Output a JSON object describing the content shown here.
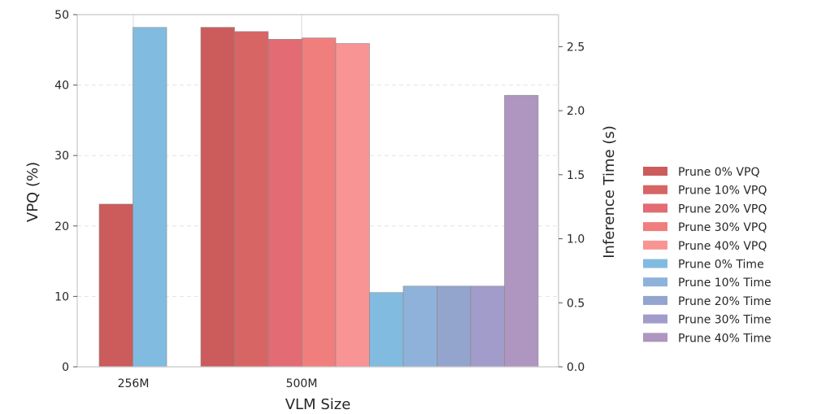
{
  "chart_data": {
    "type": "bar",
    "categories": [
      "256M",
      "500M"
    ],
    "xlabel": "VLM Size",
    "ylabel_left": "VPQ (%)",
    "ylabel_right": "Inference Time (s)",
    "ylim_left": [
      0,
      50
    ],
    "ylim_right": [
      0,
      2.75
    ],
    "left_ticks": [
      0,
      10,
      20,
      30,
      40,
      50
    ],
    "right_ticks": [
      "0.0",
      "0.5",
      "1.0",
      "1.5",
      "2.0",
      "2.5"
    ],
    "grid": "horizontal dashed",
    "legend_position": "right",
    "vpq_series": [
      {
        "name": "Prune 0% VPQ",
        "color": "#cb5c5b",
        "values": [
          23.1,
          48.2
        ]
      },
      {
        "name": "Prune 10% VPQ",
        "color": "#d76564",
        "values": [
          null,
          47.6
        ]
      },
      {
        "name": "Prune 20% VPQ",
        "color": "#e26b74",
        "values": [
          null,
          46.5
        ]
      },
      {
        "name": "Prune 30% VPQ",
        "color": "#f07e7d",
        "values": [
          null,
          46.7
        ]
      },
      {
        "name": "Prune 40% VPQ",
        "color": "#f89493",
        "values": [
          null,
          45.9
        ]
      }
    ],
    "time_series": [
      {
        "name": "Prune 0% Time",
        "color": "#82bbe0",
        "values": [
          2.65,
          0.58
        ]
      },
      {
        "name": "Prune 10% Time",
        "color": "#8fb2da",
        "values": [
          null,
          0.63
        ]
      },
      {
        "name": "Prune 20% Time",
        "color": "#93a4cd",
        "values": [
          null,
          0.63
        ]
      },
      {
        "name": "Prune 30% Time",
        "color": "#a29ccb",
        "values": [
          null,
          0.63
        ]
      },
      {
        "name": "Prune 40% Time",
        "color": "#ae96c0",
        "values": [
          null,
          2.12
        ]
      }
    ]
  }
}
